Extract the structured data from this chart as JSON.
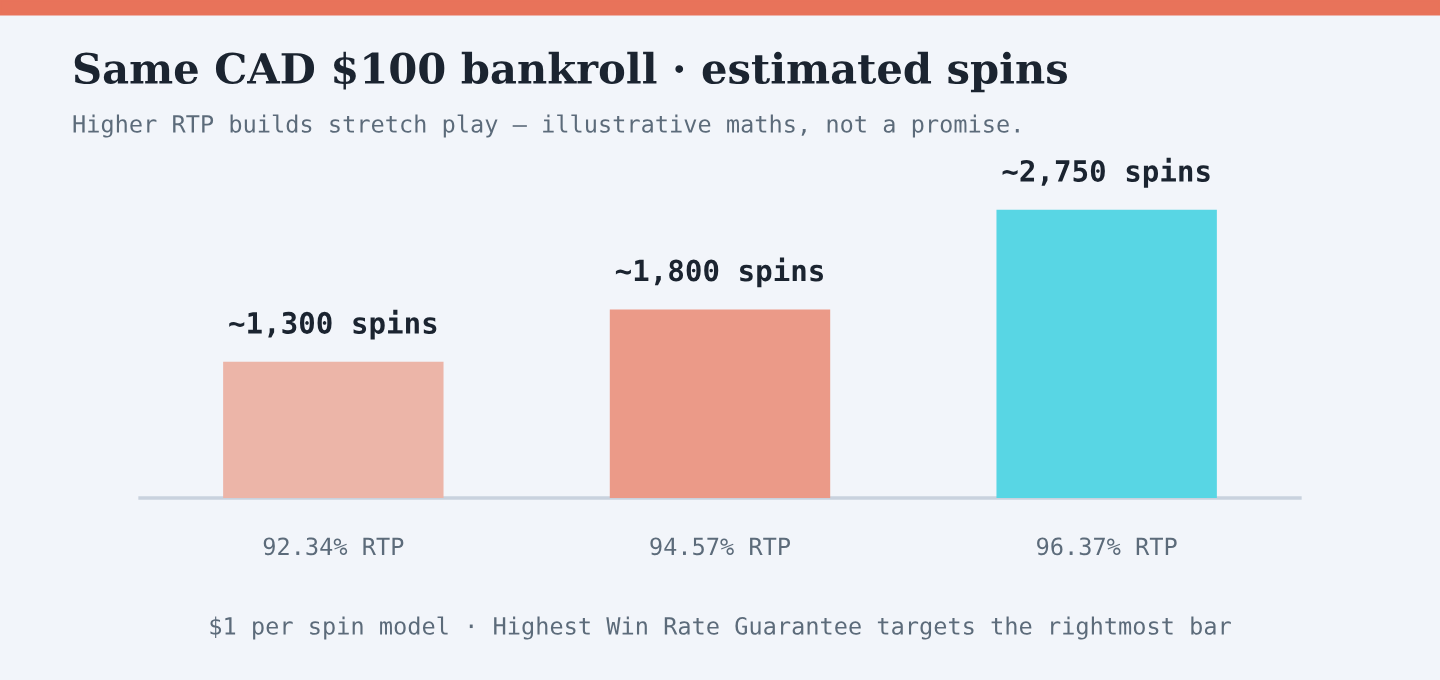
{
  "chart_data": {
    "type": "bar",
    "title": "Same CAD $100 bankroll · estimated spins",
    "subtitle": "Higher RTP builds stretch play — illustrative maths, not a promise.",
    "categories": [
      "92.34% RTP",
      "94.57% RTP",
      "96.37% RTP"
    ],
    "values": [
      1300,
      1800,
      2750
    ],
    "colors": [
      "#ecb5a8",
      "#eb9a88",
      "#58d6e4"
    ],
    "value_labels": [
      "~1,300 spins",
      "~1,800 spins",
      "~2,750 spins"
    ],
    "annotations": [
      "$1 per spin model · Highest Win Rate Guarantee targets the rightmost bar"
    ]
  }
}
